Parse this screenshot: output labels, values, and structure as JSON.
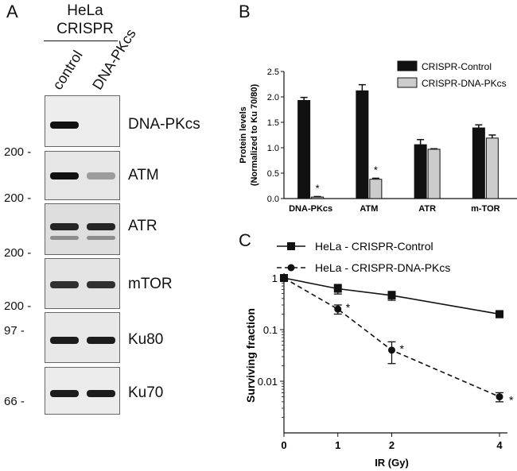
{
  "panel_a": {
    "letter": "A",
    "title_line1": "HeLa",
    "title_line2": "CRISPR",
    "lanes": [
      "control",
      "DNA-PKcs"
    ],
    "blots": [
      {
        "protein": "DNA-PKcs",
        "marker": "200 -"
      },
      {
        "protein": "ATM",
        "marker": "200 -"
      },
      {
        "protein": "ATR",
        "marker": "200 -"
      },
      {
        "protein": "mTOR",
        "marker": "200 -"
      },
      {
        "protein": "Ku80",
        "marker": "97 -"
      },
      {
        "protein": "Ku70",
        "marker": "66 -"
      }
    ],
    "band_intensity": [
      {
        "protein": "DNA-PKcs",
        "control": 1.0,
        "dna_pkcs": 0.0
      },
      {
        "protein": "ATM",
        "control": 1.0,
        "dna_pkcs": 0.35
      },
      {
        "protein": "ATR",
        "control": 0.9,
        "dna_pkcs": 0.9
      },
      {
        "protein": "mTOR",
        "control": 0.85,
        "dna_pkcs": 0.85
      },
      {
        "protein": "Ku80",
        "control": 0.95,
        "dna_pkcs": 0.95
      },
      {
        "protein": "Ku70",
        "control": 0.95,
        "dna_pkcs": 0.95
      }
    ]
  },
  "panel_b": {
    "letter": "B"
  },
  "panel_c": {
    "letter": "C"
  },
  "chart_data": [
    {
      "type": "bar",
      "ylabel_line1": "Protein levels",
      "ylabel_line2": "(Normalized to Ku 70/80)",
      "categories": [
        "DNA-PKcs",
        "ATM",
        "ATR",
        "m-TOR"
      ],
      "ylim": [
        0,
        2.5
      ],
      "yticks": [
        "0.0",
        "0.5",
        "1.0",
        "1.5",
        "2.0",
        "2.5"
      ],
      "legend_position": "top-right",
      "series": [
        {
          "name": "CRISPR-Control",
          "color": "#111111",
          "values": [
            1.93,
            2.12,
            1.06,
            1.39
          ],
          "errors": [
            0.06,
            0.12,
            0.1,
            0.06
          ]
        },
        {
          "name": "CRISPR-DNA-PKcs",
          "color": "#cccccc",
          "values": [
            0.03,
            0.38,
            0.97,
            1.19
          ],
          "errors": [
            0.01,
            0.02,
            0.01,
            0.06
          ]
        }
      ],
      "annotations": [
        "*",
        "*"
      ]
    },
    {
      "type": "line",
      "xlabel": "IR (Gy)",
      "ylabel": "Surviving fraction",
      "x": [
        0,
        1,
        2,
        4
      ],
      "xticks": [
        "0",
        "1",
        "2",
        "4"
      ],
      "yscale": "log",
      "ylim": [
        0.001,
        1
      ],
      "yticks": [
        "1",
        "0.1",
        "0.01"
      ],
      "legend_position": "top",
      "series": [
        {
          "name": "HeLa - CRISPR-Control",
          "values": [
            1.0,
            0.62,
            0.46,
            0.2
          ],
          "errors": [
            0.05,
            0.13,
            0.09,
            0.03
          ],
          "marker": "square",
          "dash": "solid"
        },
        {
          "name": "HeLa - CRISPR-DNA-PKcs",
          "values": [
            1.0,
            0.25,
            0.04,
            0.005
          ],
          "errors": [
            0.05,
            0.05,
            0.018,
            0.001
          ],
          "marker": "circle",
          "dash": "dashed"
        }
      ],
      "annotations": [
        "*",
        "*",
        "*"
      ]
    }
  ]
}
